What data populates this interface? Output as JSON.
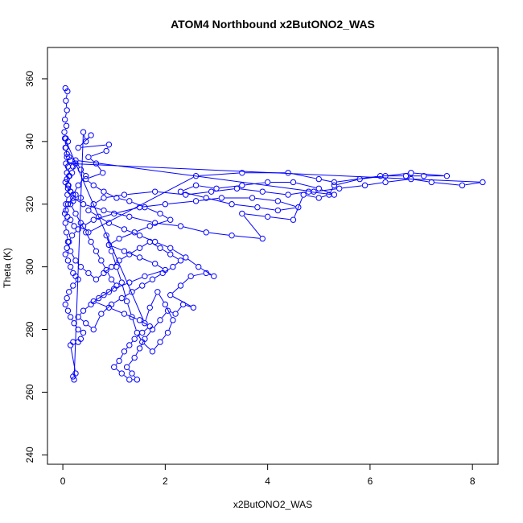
{
  "chart_data": {
    "type": "scatter",
    "title": "ATOM4 Northbound x2ButONO2_WAS",
    "xlabel": "x2ButONO2_WAS",
    "ylabel": "Theta (K)",
    "xlim": [
      -0.3,
      8.5
    ],
    "ylim": [
      237,
      370
    ],
    "x_ticks": [
      0,
      2,
      4,
      6,
      8
    ],
    "y_ticks": [
      240,
      260,
      280,
      300,
      320,
      340,
      360
    ],
    "grid": false,
    "legend": "none",
    "mode": "lines+markers",
    "color": "#0000ff",
    "points": [
      [
        0.05,
        357
      ],
      [
        0.09,
        356
      ],
      [
        0.06,
        353
      ],
      [
        0.08,
        350
      ],
      [
        0.04,
        347
      ],
      [
        0.07,
        345
      ],
      [
        0.03,
        343
      ],
      [
        0.06,
        341
      ],
      [
        0.1,
        340
      ],
      [
        0.05,
        338
      ],
      [
        0.08,
        336
      ],
      [
        0.12,
        335
      ],
      [
        0.15,
        334
      ],
      [
        0.2,
        332
      ],
      [
        0.25,
        333
      ],
      [
        0.18,
        330
      ],
      [
        0.12,
        329
      ],
      [
        0.08,
        328
      ],
      [
        0.05,
        327
      ],
      [
        0.1,
        325
      ],
      [
        0.15,
        324
      ],
      [
        0.25,
        323
      ],
      [
        0.35,
        322
      ],
      [
        0.2,
        321
      ],
      [
        0.1,
        320
      ],
      [
        0.06,
        318
      ],
      [
        0.09,
        316
      ],
      [
        0.15,
        315
      ],
      [
        0.22,
        313
      ],
      [
        0.3,
        312
      ],
      [
        0.18,
        310
      ],
      [
        0.12,
        308
      ],
      [
        0.08,
        306
      ],
      [
        0.05,
        304
      ],
      [
        0.1,
        302
      ],
      [
        0.15,
        300
      ],
      [
        0.2,
        298
      ],
      [
        0.25,
        297
      ],
      [
        0.3,
        296
      ],
      [
        0.2,
        294
      ],
      [
        0.12,
        292
      ],
      [
        0.08,
        290
      ],
      [
        0.05,
        288
      ],
      [
        0.1,
        286
      ],
      [
        0.15,
        284
      ],
      [
        0.22,
        282
      ],
      [
        0.3,
        280
      ],
      [
        0.4,
        279
      ],
      [
        0.35,
        277
      ],
      [
        0.3,
        276
      ],
      [
        0.2,
        276
      ],
      [
        0.15,
        275
      ],
      [
        0.25,
        266
      ],
      [
        0.2,
        265
      ],
      [
        0.22,
        264
      ],
      [
        0.4,
        343
      ],
      [
        0.45,
        340
      ],
      [
        0.55,
        342
      ],
      [
        0.3,
        338
      ],
      [
        0.9,
        339
      ],
      [
        0.85,
        337
      ],
      [
        0.5,
        335
      ],
      [
        0.65,
        333
      ],
      [
        0.78,
        330
      ],
      [
        0.45,
        328
      ],
      [
        0.6,
        326
      ],
      [
        0.8,
        324
      ],
      [
        1.05,
        322
      ],
      [
        1.3,
        321
      ],
      [
        1.6,
        319
      ],
      [
        1.9,
        317
      ],
      [
        2.1,
        315
      ],
      [
        1.7,
        313
      ],
      [
        1.4,
        311
      ],
      [
        1.1,
        309
      ],
      [
        0.9,
        307
      ],
      [
        1.2,
        305
      ],
      [
        1.5,
        303
      ],
      [
        1.8,
        301
      ],
      [
        2.0,
        299
      ],
      [
        1.6,
        297
      ],
      [
        1.3,
        295
      ],
      [
        1.0,
        293
      ],
      [
        0.8,
        291
      ],
      [
        0.6,
        289
      ],
      [
        0.9,
        287
      ],
      [
        1.2,
        285
      ],
      [
        1.5,
        283
      ],
      [
        1.7,
        281
      ],
      [
        1.55,
        279
      ],
      [
        1.4,
        277
      ],
      [
        1.3,
        275
      ],
      [
        1.2,
        273
      ],
      [
        1.1,
        270
      ],
      [
        1.0,
        268
      ],
      [
        1.15,
        266
      ],
      [
        1.3,
        264
      ],
      [
        1.45,
        264
      ],
      [
        1.35,
        266
      ],
      [
        1.25,
        268
      ],
      [
        1.4,
        271
      ],
      [
        1.5,
        274
      ],
      [
        1.6,
        277
      ],
      [
        1.75,
        280
      ],
      [
        1.9,
        283
      ],
      [
        2.05,
        286
      ],
      [
        2.2,
        285
      ],
      [
        2.35,
        288
      ],
      [
        2.55,
        287
      ],
      [
        2.1,
        291
      ],
      [
        2.3,
        294
      ],
      [
        2.5,
        297
      ],
      [
        2.8,
        298
      ],
      [
        2.95,
        297
      ],
      [
        2.65,
        300
      ],
      [
        2.4,
        303
      ],
      [
        2.1,
        306
      ],
      [
        1.8,
        308
      ],
      [
        1.5,
        310
      ],
      [
        1.2,
        312
      ],
      [
        0.9,
        314
      ],
      [
        0.7,
        316
      ],
      [
        0.5,
        318
      ],
      [
        0.6,
        320
      ],
      [
        0.8,
        322
      ],
      [
        1.2,
        323
      ],
      [
        1.8,
        324
      ],
      [
        2.4,
        323
      ],
      [
        2.9,
        324
      ],
      [
        3.4,
        325
      ],
      [
        3.9,
        324
      ],
      [
        4.4,
        323
      ],
      [
        4.8,
        324
      ],
      [
        5.3,
        323
      ],
      [
        5.0,
        325
      ],
      [
        4.5,
        327
      ],
      [
        4.0,
        327
      ],
      [
        3.5,
        326
      ],
      [
        3.0,
        325
      ],
      [
        2.6,
        326
      ],
      [
        2.3,
        324
      ],
      [
        2.8,
        322
      ],
      [
        3.3,
        320
      ],
      [
        3.8,
        319
      ],
      [
        4.2,
        318
      ],
      [
        4.6,
        319
      ],
      [
        4.2,
        321
      ],
      [
        3.7,
        322
      ],
      [
        3.1,
        322
      ],
      [
        2.6,
        321
      ],
      [
        2.0,
        320
      ],
      [
        1.5,
        319
      ],
      [
        1.0,
        317
      ],
      [
        0.6,
        315
      ],
      [
        0.4,
        313
      ],
      [
        0.5,
        311
      ],
      [
        2.6,
        329
      ],
      [
        3.5,
        330
      ],
      [
        4.4,
        330
      ],
      [
        5.0,
        328
      ],
      [
        5.3,
        327
      ],
      [
        6.2,
        329
      ],
      [
        6.7,
        329
      ],
      [
        7.05,
        329
      ],
      [
        7.5,
        329
      ],
      [
        6.8,
        330
      ],
      [
        6.3,
        329
      ],
      [
        5.8,
        328
      ],
      [
        5.3,
        326
      ],
      [
        5.2,
        323
      ],
      [
        5.0,
        322
      ],
      [
        4.7,
        323
      ],
      [
        4.5,
        315
      ],
      [
        4.0,
        316
      ],
      [
        3.5,
        317
      ],
      [
        3.9,
        309
      ],
      [
        3.3,
        310
      ],
      [
        2.8,
        311
      ],
      [
        2.3,
        313
      ],
      [
        1.8,
        314
      ],
      [
        1.3,
        316
      ],
      [
        0.8,
        318
      ],
      [
        0.4,
        320
      ],
      [
        0.2,
        322
      ],
      [
        0.15,
        324
      ],
      [
        0.1,
        326
      ],
      [
        0.08,
        330
      ],
      [
        0.06,
        333
      ],
      [
        8.2,
        327
      ],
      [
        7.8,
        326
      ],
      [
        7.2,
        327
      ],
      [
        6.8,
        328
      ],
      [
        6.3,
        327
      ],
      [
        5.9,
        326
      ],
      [
        5.4,
        325
      ],
      [
        4.9,
        324
      ],
      [
        0.25,
        334
      ],
      [
        0.35,
        331
      ],
      [
        0.45,
        329
      ],
      [
        0.3,
        326
      ],
      [
        0.2,
        323
      ],
      [
        0.15,
        320
      ],
      [
        0.25,
        317
      ],
      [
        0.35,
        314
      ],
      [
        0.45,
        311
      ],
      [
        0.55,
        308
      ],
      [
        0.65,
        305
      ],
      [
        0.75,
        302
      ],
      [
        0.85,
        299
      ],
      [
        0.95,
        296
      ],
      [
        1.05,
        294
      ],
      [
        0.9,
        292
      ],
      [
        0.7,
        290
      ],
      [
        0.55,
        288
      ],
      [
        0.4,
        286
      ],
      [
        0.3,
        284
      ],
      [
        0.45,
        282
      ],
      [
        0.6,
        280
      ],
      [
        0.75,
        285
      ],
      [
        0.95,
        288
      ],
      [
        1.15,
        290
      ],
      [
        1.35,
        292
      ],
      [
        1.55,
        294
      ],
      [
        1.75,
        296
      ],
      [
        1.95,
        298
      ],
      [
        2.15,
        300
      ],
      [
        2.3,
        302
      ],
      [
        2.1,
        304
      ],
      [
        1.9,
        306
      ],
      [
        1.7,
        308
      ],
      [
        1.5,
        306
      ],
      [
        1.3,
        304
      ],
      [
        1.1,
        302
      ],
      [
        0.95,
        300
      ],
      [
        0.8,
        298
      ],
      [
        0.65,
        296
      ],
      [
        0.5,
        298
      ],
      [
        0.35,
        300
      ],
      [
        0.25,
        302
      ],
      [
        0.15,
        305
      ],
      [
        0.1,
        308
      ],
      [
        0.07,
        311
      ],
      [
        0.05,
        314
      ],
      [
        0.04,
        317
      ],
      [
        0.06,
        320
      ],
      [
        0.09,
        323
      ],
      [
        0.11,
        326
      ],
      [
        0.13,
        329
      ],
      [
        0.1,
        332
      ],
      [
        0.08,
        335
      ],
      [
        0.06,
        338
      ],
      [
        0.04,
        341
      ],
      [
        1.6,
        282
      ],
      [
        1.7,
        287
      ],
      [
        1.85,
        292
      ],
      [
        2.0,
        288
      ],
      [
        2.15,
        283
      ],
      [
        2.05,
        279
      ],
      [
        1.9,
        276
      ],
      [
        1.75,
        273
      ],
      [
        1.55,
        276
      ],
      [
        1.45,
        279
      ],
      [
        1.35,
        284
      ],
      [
        1.25,
        289
      ],
      [
        1.15,
        295
      ],
      [
        1.05,
        300
      ],
      [
        0.95,
        305
      ],
      [
        0.85,
        310
      ]
    ]
  }
}
